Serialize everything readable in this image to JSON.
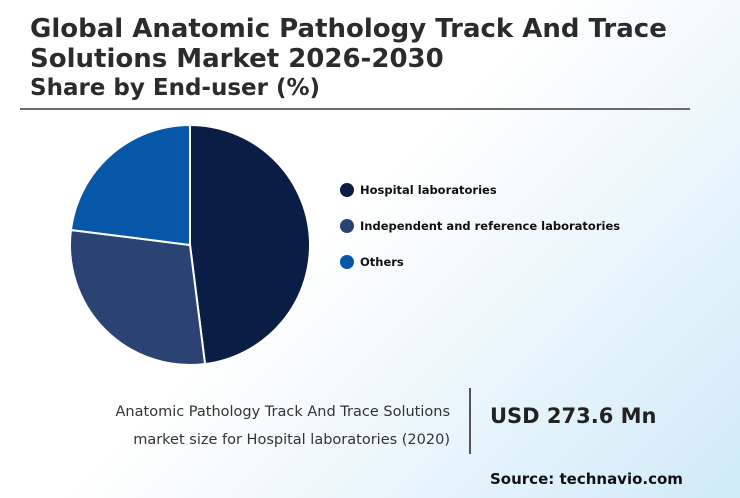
{
  "header": {
    "title": "Global Anatomic Pathology Track And Trace Solutions Market 2026-2030",
    "subtitle": "Share by End-user (%)"
  },
  "chart_data": {
    "type": "pie",
    "categories": [
      "Hospital laboratories",
      "Independent and reference laboratories",
      "Others"
    ],
    "values": [
      48,
      29,
      23
    ],
    "colors": [
      "#0a1e45",
      "#2b4373",
      "#0657a8"
    ],
    "legend_position": "right"
  },
  "footer": {
    "caption_line1": "Anatomic Pathology Track And Trace Solutions",
    "caption_line2": "market size for Hospital laboratories (2020)",
    "value": "USD 273.6 Mn",
    "source": "Source: technavio.com"
  }
}
